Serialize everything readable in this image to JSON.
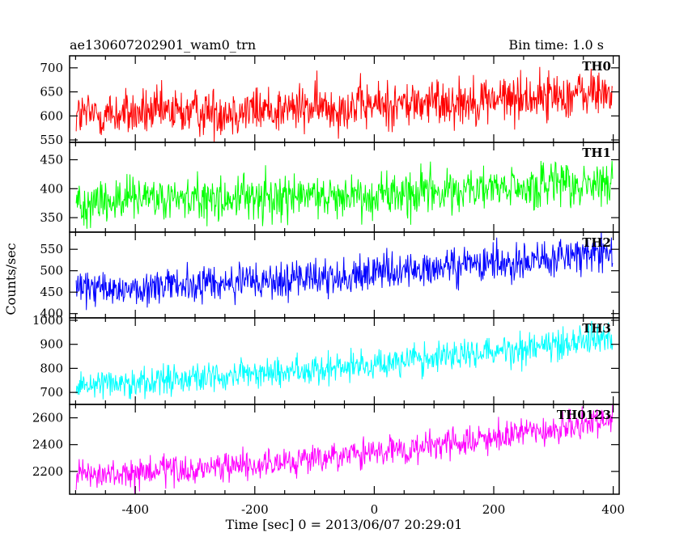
{
  "header": {
    "left_title": "ae130607202901_wam0_trn",
    "right_title": "Bin time: 1.0 s"
  },
  "chart_data": {
    "type": "line",
    "xlabel": "Time [sec] 0 = 2013/06/07 20:29:01",
    "ylabel": "Counts/sec",
    "xlim": [
      -510,
      410
    ],
    "x_ticks": [
      -400,
      -200,
      0,
      200,
      400
    ],
    "x_start": -499,
    "x_end": 399,
    "x_step": 1,
    "grid": false,
    "panels": [
      {
        "name": "TH0",
        "color": "#ff0000",
        "ylim": [
          545,
          725
        ],
        "y_ticks": [
          550,
          600,
          650,
          700
        ],
        "trend_start": 602,
        "trend_end": 650,
        "noise": 25
      },
      {
        "name": "TH1",
        "color": "#00ff00",
        "ylim": [
          325,
          480
        ],
        "y_ticks": [
          350,
          400,
          450
        ],
        "trend_start": 378,
        "trend_end": 408,
        "noise": 20
      },
      {
        "name": "TH2",
        "color": "#0000ff",
        "ylim": [
          390,
          590
        ],
        "y_ticks": [
          400,
          450,
          500,
          550
        ],
        "trend_start": 455,
        "trend_end": 545,
        "noise": 22
      },
      {
        "name": "TH3",
        "color": "#00ffff",
        "ylim": [
          650,
          1010
        ],
        "y_ticks": [
          700,
          800,
          900,
          1000
        ],
        "trend_start": 735,
        "trend_end": 935,
        "noise": 32
      },
      {
        "name": "TH0123",
        "color": "#ff00ff",
        "ylim": [
          2030,
          2700
        ],
        "y_ticks": [
          2200,
          2400,
          2600
        ],
        "trend_start": 2160,
        "trend_end": 2580,
        "noise": 55
      }
    ]
  }
}
